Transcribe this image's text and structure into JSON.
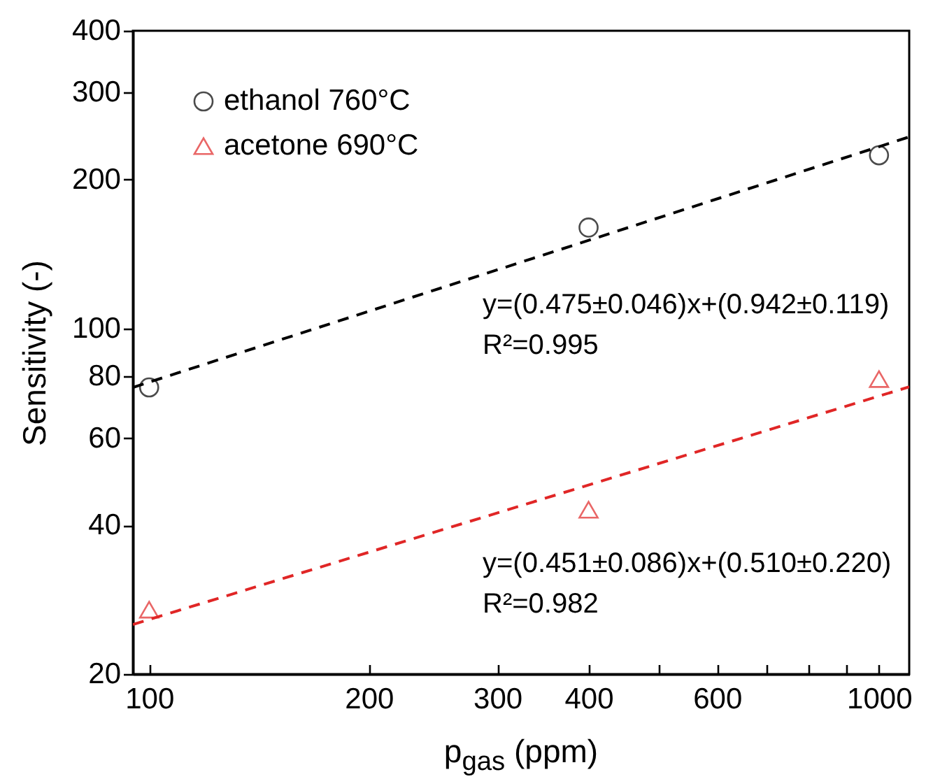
{
  "chart_data": {
    "type": "scatter",
    "xlabel": "p$_{gas}$ (ppm)",
    "ylabel": "Sensitivity (-)",
    "log": "xy",
    "xlim": [
      95,
      1100
    ],
    "ylim": [
      20,
      400
    ],
    "xticks": [
      100,
      200,
      300,
      400,
      {
        "value": 500,
        "label": null
      },
      600,
      {
        "value": 700,
        "label": null
      },
      {
        "value": 800,
        "label": null
      },
      {
        "value": 900,
        "label": null
      },
      1000
    ],
    "yticks": [
      20,
      40,
      60,
      80,
      100,
      200,
      300,
      400
    ],
    "grid": false,
    "legend": "top left",
    "series": [
      {
        "name": "ethanol 760°C",
        "type": "scatter",
        "marker": "circle",
        "color": "#000000",
        "x": [
          100,
          400,
          1000
        ],
        "values": [
          76,
          160,
          224
        ]
      },
      {
        "name": "acetone 690°C",
        "type": "scatter",
        "marker": "triangle",
        "color": "#e02626",
        "x": [
          100,
          400,
          1000
        ],
        "values": [
          27,
          43,
          79
        ]
      },
      {
        "type": "line",
        "line_style": "dashed",
        "marker": "none",
        "color": "#000000",
        "x": [
          95,
          1100
        ],
        "values": [
          76,
          244
        ]
      },
      {
        "type": "line",
        "line_style": "dashed",
        "marker": "none",
        "color": "#e02626",
        "x": [
          95,
          1100
        ],
        "values": [
          25.2,
          76.2
        ]
      }
    ],
    "annotations": [
      "y=(0.475±0.046)x+(0.942±0.119)",
      "R²=0.995",
      "y=(0.451±0.086)x+(0.510±0.220)",
      "R²=0.982"
    ]
  }
}
